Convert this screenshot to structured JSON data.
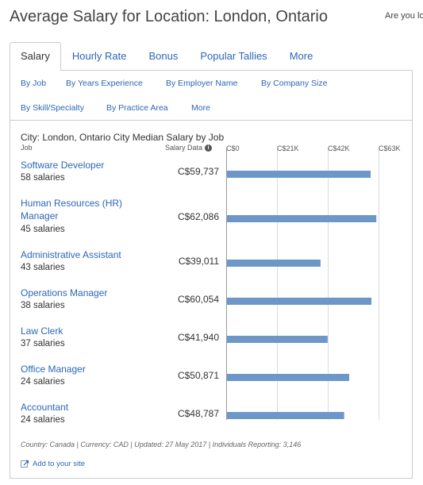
{
  "page": {
    "title": "Average Salary for Location: London, Ontario",
    "side_note": "Are you lo"
  },
  "tabs": [
    "Salary",
    "Hourly Rate",
    "Bonus",
    "Popular Tallies",
    "More"
  ],
  "subnav": [
    "By Job",
    "By Years Experience",
    "By Employer Name",
    "By Company Size",
    "By Skill/Specialty",
    "By Practice Area",
    "More"
  ],
  "chart_header": {
    "title": "City: London, Ontario City Median Salary by Job",
    "job_col": "Job",
    "salary_col": "Salary Data",
    "info_icon": "i"
  },
  "rows": [
    {
      "job": "Software Developer",
      "count": "58 salaries",
      "salary": "C$59,737"
    },
    {
      "job": "Human Resources (HR) Manager",
      "count": "45 salaries",
      "salary": "C$62,086"
    },
    {
      "job": "Administrative Assistant",
      "count": "43 salaries",
      "salary": "C$39,011"
    },
    {
      "job": "Operations Manager",
      "count": "38 salaries",
      "salary": "C$60,054"
    },
    {
      "job": "Law Clerk",
      "count": "37 salaries",
      "salary": "C$41,940"
    },
    {
      "job": "Office Manager",
      "count": "24 salaries",
      "salary": "C$50,871"
    },
    {
      "job": "Accountant",
      "count": "24 salaries",
      "salary": "C$48,787"
    }
  ],
  "footer": "Country: Canada | Currency: CAD | Updated: 27 May 2017 | Individuals Reporting: 3,146",
  "add_site": "Add to your site",
  "chart_data": {
    "type": "bar",
    "orientation": "horizontal",
    "categories": [
      "Software Developer",
      "Human Resources (HR) Manager",
      "Administrative Assistant",
      "Operations Manager",
      "Law Clerk",
      "Office Manager",
      "Accountant"
    ],
    "values": [
      59737,
      62086,
      39011,
      60054,
      41940,
      50871,
      48787
    ],
    "xlim": [
      0,
      63000
    ],
    "ticks": [
      0,
      21000,
      42000,
      63000
    ],
    "tick_labels": [
      "C$0",
      "C$21K",
      "C$42K",
      "C$63K"
    ],
    "title": "City: London, Ontario City Median Salary by Job",
    "grid": true,
    "bar_color": "#6e97c9"
  }
}
